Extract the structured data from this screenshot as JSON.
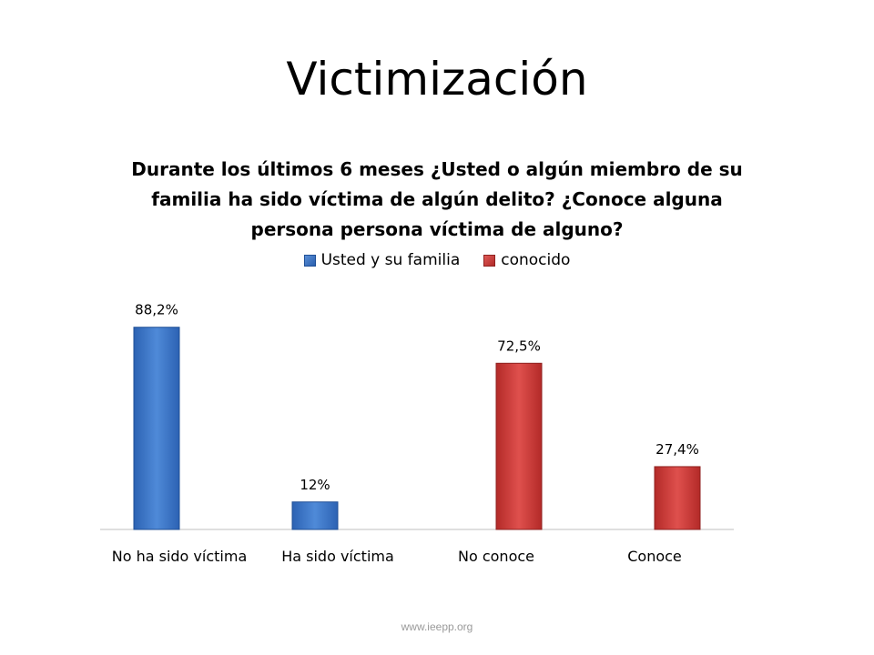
{
  "slide": {
    "title": "Victimización",
    "footer": "www.ieepp.org"
  },
  "colors": {
    "blue": "#3e79cc",
    "red": "#d53f3c"
  },
  "chart_data": {
    "type": "bar",
    "title": "Durante los últimos 6 meses ¿Usted o algún miembro de su familia ha sido víctima de algún delito? ¿Conoce alguna persona persona víctima de alguno?",
    "categories": [
      "No ha sido víctima",
      "Ha sido víctima",
      "No conoce",
      "Conoce"
    ],
    "series": [
      {
        "name": "Usted y su familia",
        "color": "#3e79cc",
        "values": [
          88.2,
          12,
          null,
          null
        ],
        "labels": [
          "88,2%",
          "12%",
          "",
          ""
        ]
      },
      {
        "name": "conocido",
        "color": "#d53f3c",
        "values": [
          null,
          null,
          72.5,
          27.4
        ],
        "labels": [
          "",
          "",
          "72,5%",
          "27,4%"
        ]
      }
    ],
    "ylim": [
      0,
      100
    ],
    "legend": "top-center",
    "grid": false
  }
}
